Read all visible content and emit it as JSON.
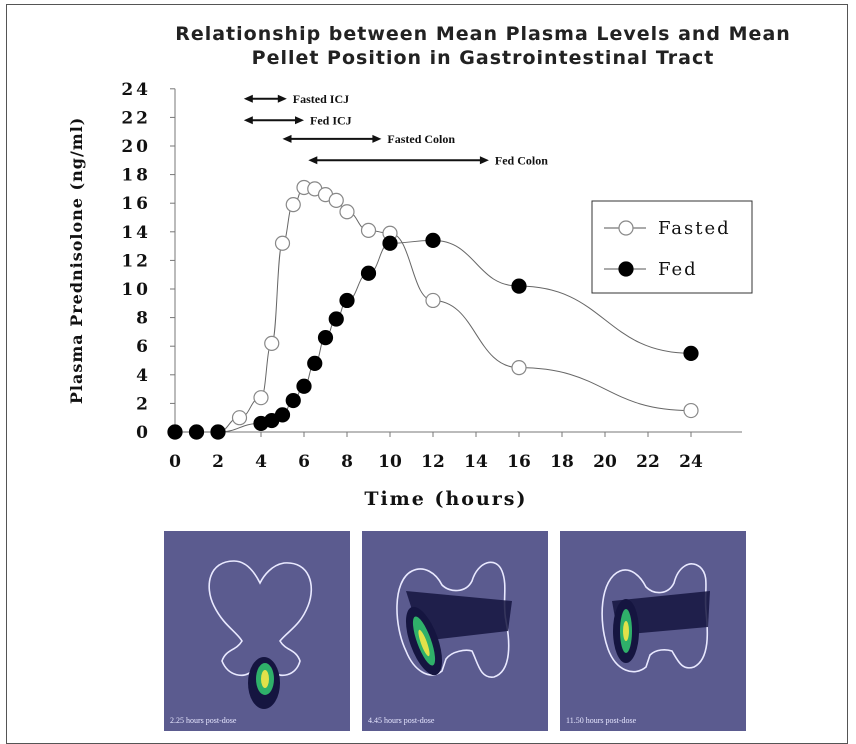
{
  "chart_data": {
    "type": "scatter",
    "title": "Relationship between Mean Plasma Levels and Mean Pellet Position in Gastrointestinal Tract",
    "title_lines": [
      "Relationship between Mean Plasma Levels and Mean",
      "Pellet Position in Gastrointestinal Tract"
    ],
    "xlabel": "Time (hours)",
    "ylabel": "Plasma Prednisolone (ng/ml)",
    "xlim": [
      0,
      26
    ],
    "ylim": [
      0,
      24
    ],
    "x_ticks": [
      "0",
      "2",
      "4",
      "6",
      "8",
      "10",
      "12",
      "14",
      "16",
      "18",
      "20",
      "22",
      "24"
    ],
    "y_ticks": [
      "0",
      "2",
      "4",
      "6",
      "8",
      "10",
      "12",
      "14",
      "16",
      "18",
      "20",
      "22",
      "24"
    ],
    "legend_position": "right",
    "series": [
      {
        "name": "Fasted",
        "marker": "open-circle",
        "x": [
          0,
          1,
          2,
          3,
          4,
          4.5,
          5,
          5.5,
          6,
          6.5,
          7,
          7.5,
          8,
          9,
          10,
          12,
          16,
          24
        ],
        "y": [
          0,
          0,
          0,
          1.0,
          2.4,
          6.2,
          13.2,
          15.9,
          17.1,
          17.0,
          16.6,
          16.2,
          15.4,
          14.1,
          13.9,
          9.2,
          4.5,
          1.5
        ]
      },
      {
        "name": "Fed",
        "marker": "filled-circle",
        "x": [
          0,
          1,
          2,
          4,
          4.5,
          5,
          5.5,
          6,
          6.5,
          7,
          7.5,
          8,
          9,
          10,
          12,
          16,
          24
        ],
        "y": [
          0,
          0,
          0,
          0.6,
          0.8,
          1.2,
          2.2,
          3.2,
          4.8,
          6.6,
          7.9,
          9.2,
          11.1,
          13.2,
          13.4,
          10.2,
          5.5
        ]
      }
    ],
    "annotations": [
      {
        "label": "Fasted ICJ",
        "x_start": 3.2,
        "x_end": 5.2,
        "y": 23.3
      },
      {
        "label": "Fed ICJ",
        "x_start": 3.2,
        "x_end": 6.0,
        "y": 21.8
      },
      {
        "label": "Fasted Colon",
        "x_start": 5.0,
        "x_end": 9.6,
        "y": 20.5
      },
      {
        "label": "Fed Colon",
        "x_start": 6.2,
        "x_end": 14.6,
        "y": 19.0
      }
    ]
  },
  "scans": [
    {
      "caption": "2.25 hours post-dose"
    },
    {
      "caption": "4.45 hours post-dose"
    },
    {
      "caption": "11.50 hours post-dose"
    }
  ]
}
